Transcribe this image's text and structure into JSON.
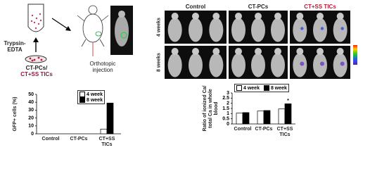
{
  "diagram": {
    "tube_label": "Trypsin-EDTA",
    "dish_label_1": "CT-PCs/",
    "dish_label_2": "CT+SS TICs",
    "injection_label": "Orthotopic injection"
  },
  "mice_panel": {
    "columns": [
      "Control",
      "CT-PCs",
      "CT+SS TICs"
    ],
    "rows": [
      "4 weeks",
      "8 weeks"
    ]
  },
  "chart_data": [
    {
      "type": "bar",
      "y_label": "GFP+ cells (%)",
      "categories": [
        "Control",
        "CT-PCs",
        "CT+SS TICs"
      ],
      "series": [
        {
          "name": "4 week",
          "color": "#ffffff",
          "values": [
            0,
            0,
            6
          ]
        },
        {
          "name": "8 week",
          "color": "#000000",
          "values": [
            0,
            0,
            39
          ]
        }
      ],
      "ylim": [
        0,
        50
      ],
      "yticks": [
        0,
        10,
        20,
        30,
        40,
        50
      ],
      "legend": "top right"
    },
    {
      "type": "bar",
      "y_label": "Ratio of ionized Ca/ total Ca in whole blood",
      "categories": [
        "Control",
        "CT-PCs",
        "CT+SS TICs"
      ],
      "series": [
        {
          "name": "4 week",
          "color": "#ffffff",
          "values": [
            1.05,
            1.25,
            1.45
          ]
        },
        {
          "name": "8 week",
          "color": "#000000",
          "values": [
            1.1,
            1.3,
            1.95
          ]
        }
      ],
      "ylim": [
        0,
        3
      ],
      "yticks": [
        0,
        0.5,
        1,
        1.5,
        2,
        2.5,
        3
      ],
      "legend": "top",
      "annotation": "*"
    }
  ]
}
